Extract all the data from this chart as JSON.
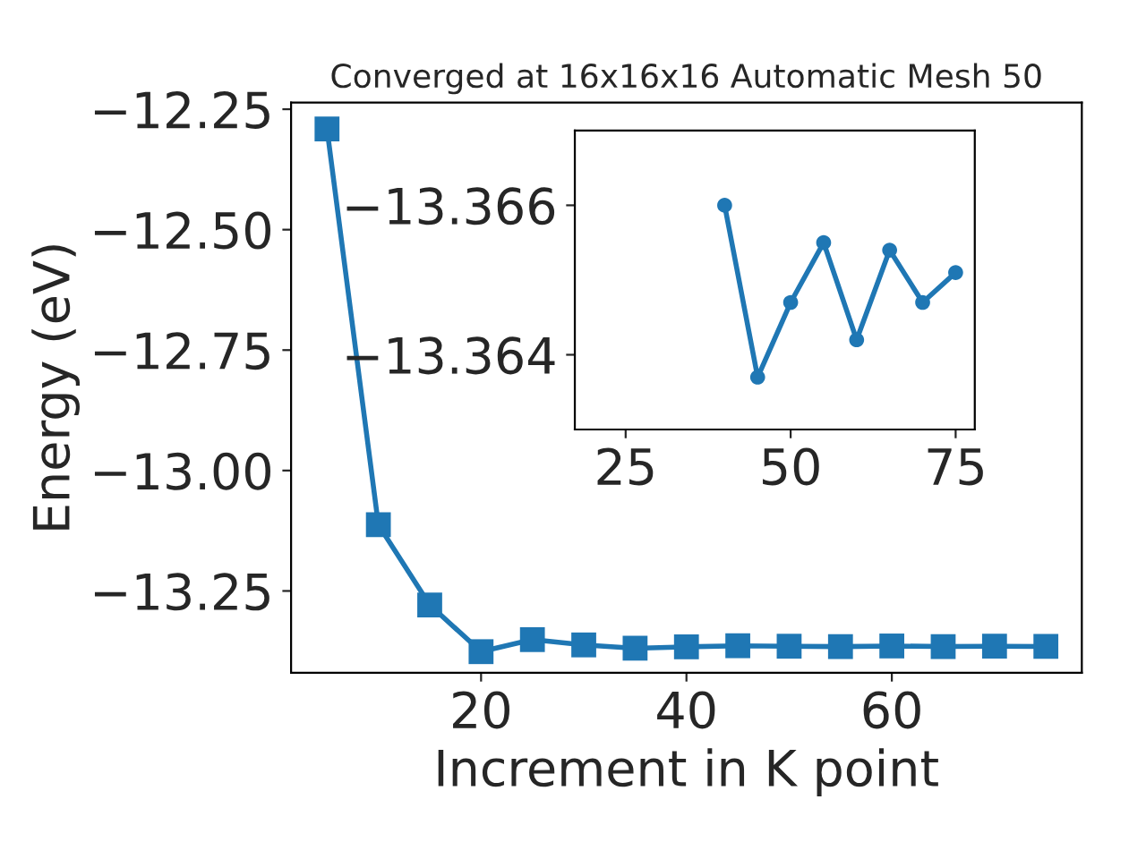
{
  "chart_data": [
    {
      "type": "line",
      "title": "Converged at 16x16x16 Automatic Mesh 50",
      "xlabel": "Increment in K point",
      "ylabel": "Energy (eV)",
      "x": [
        5,
        10,
        15,
        20,
        25,
        30,
        35,
        40,
        45,
        50,
        55,
        60,
        65,
        70,
        75
      ],
      "series": [
        {
          "color": "#1f77b4",
          "values": [
            -12.291,
            -13.1125,
            -13.279,
            -13.376,
            -13.351,
            -13.362,
            -13.3688,
            -13.366,
            -13.3637,
            -13.3647,
            -13.3655,
            -13.3642,
            -13.3654,
            -13.3647,
            -13.3651
          ]
        }
      ],
      "xlim": [
        1.5,
        78.5
      ],
      "xticks": [
        20,
        40,
        60
      ],
      "ylim": [
        -13.42,
        -12.236
      ],
      "yticks": [
        {
          "value": -13.25,
          "label": "−13.25"
        },
        {
          "value": -13.0,
          "label": "−13.00"
        },
        {
          "value": -12.75,
          "label": "−12.75"
        },
        {
          "value": -12.5,
          "label": "−12.50"
        },
        {
          "value": -12.25,
          "label": "−12.25"
        }
      ],
      "marker": "square",
      "grid": false
    },
    {
      "type": "line",
      "x": [
        40,
        45,
        50,
        55,
        60,
        65,
        70,
        75
      ],
      "series": [
        {
          "color": "#1f77b4",
          "values": [
            -13.366,
            -13.3637,
            -13.3647,
            -13.3655,
            -13.3642,
            -13.3654,
            -13.3647,
            -13.3651
          ]
        }
      ],
      "xlim": [
        17.3,
        77.9
      ],
      "xticks": [
        25,
        50,
        75
      ],
      "ylim": [
        -13.363,
        -13.367
      ],
      "yticks": [
        {
          "value": -13.366,
          "label": "−13.366"
        },
        {
          "value": -13.364,
          "label": "−13.364"
        }
      ],
      "marker": "circle",
      "grid": false
    }
  ]
}
